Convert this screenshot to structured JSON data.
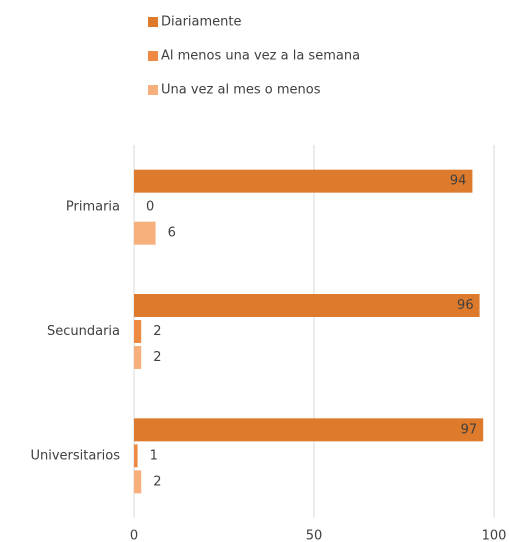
{
  "chart_data": {
    "type": "hbar",
    "categories": [
      "Primaria",
      "Secundaria",
      "Universitarios"
    ],
    "series": [
      {
        "name": "Diariamente",
        "color": "#dd7a2b",
        "values": [
          94,
          96,
          97
        ]
      },
      {
        "name": "Al menos una vez a la semana",
        "color": "#ee8a43",
        "values": [
          0,
          2,
          1
        ]
      },
      {
        "name": "Una vez al mes o menos",
        "color": "#f7b07c",
        "values": [
          6,
          2,
          2
        ]
      }
    ],
    "xlim": [
      0,
      100
    ],
    "xticks": [
      0,
      50,
      100
    ],
    "grid": true,
    "legend": "top"
  }
}
